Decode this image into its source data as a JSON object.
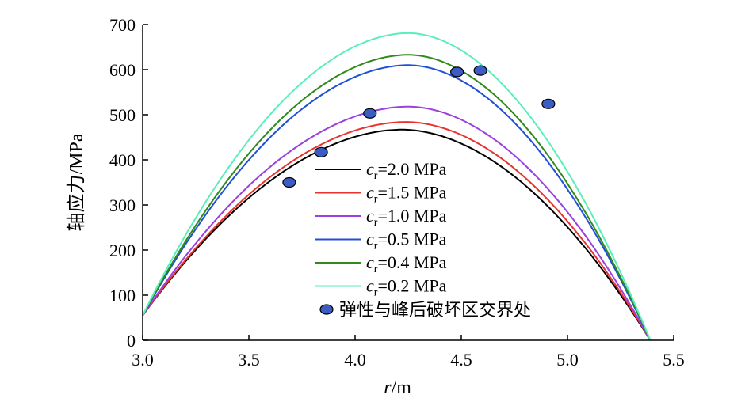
{
  "chart_data": {
    "type": "line",
    "xlabel": "r/m",
    "xlabel_var": "r",
    "xlabel_unit": "/m",
    "ylabel": "轴应力/MPa",
    "xlim": [
      3.0,
      5.5
    ],
    "ylim": [
      0,
      700
    ],
    "xticks": [
      "3.0",
      "3.5",
      "4.0",
      "4.5",
      "5.0",
      "5.5"
    ],
    "yticks": [
      "0",
      "100",
      "200",
      "300",
      "400",
      "500",
      "600",
      "700"
    ],
    "grid": false,
    "legend_position": "center",
    "series": [
      {
        "name": "c_r=2.0 MPa",
        "legend_symbol": "c",
        "legend_sub": "r",
        "legend_rest": "=2.0 MPa",
        "color": "#000000",
        "peak_x": 4.22,
        "peak_y": 467
      },
      {
        "name": "c_r=1.5 MPa",
        "legend_symbol": "c",
        "legend_sub": "r",
        "legend_rest": "=1.5 MPa",
        "color": "#e8322d",
        "peak_x": 4.24,
        "peak_y": 484
      },
      {
        "name": "c_r=1.0 MPa",
        "legend_symbol": "c",
        "legend_sub": "r",
        "legend_rest": "=1.0 MPa",
        "color": "#9a3fe0",
        "peak_x": 4.25,
        "peak_y": 518
      },
      {
        "name": "c_r=0.5 MPa",
        "legend_symbol": "c",
        "legend_sub": "r",
        "legend_rest": "=0.5 MPa",
        "color": "#1f4fd6",
        "peak_x": 4.25,
        "peak_y": 610
      },
      {
        "name": "c_r=0.4 MPa",
        "legend_symbol": "c",
        "legend_sub": "r",
        "legend_rest": "=0.4 MPa",
        "color": "#2f8a1b",
        "peak_x": 4.25,
        "peak_y": 633
      },
      {
        "name": "c_r=0.2 MPa",
        "legend_symbol": "c",
        "legend_sub": "r",
        "legend_rest": "=0.2 MPa",
        "color": "#59efb8",
        "peak_x": 4.25,
        "peak_y": 681
      }
    ],
    "curve_endpoints": {
      "x_start": 3.0,
      "y_start": 55,
      "x_end": 5.39,
      "y_end": 0
    },
    "boundary_points": {
      "name": "弹性与峰后破坏区交界处",
      "marker_color": "#3b5cc4",
      "points": [
        {
          "x": 3.69,
          "y": 350
        },
        {
          "x": 3.84,
          "y": 417
        },
        {
          "x": 4.07,
          "y": 503
        },
        {
          "x": 4.48,
          "y": 595
        },
        {
          "x": 4.59,
          "y": 598
        },
        {
          "x": 4.91,
          "y": 524
        }
      ]
    }
  }
}
